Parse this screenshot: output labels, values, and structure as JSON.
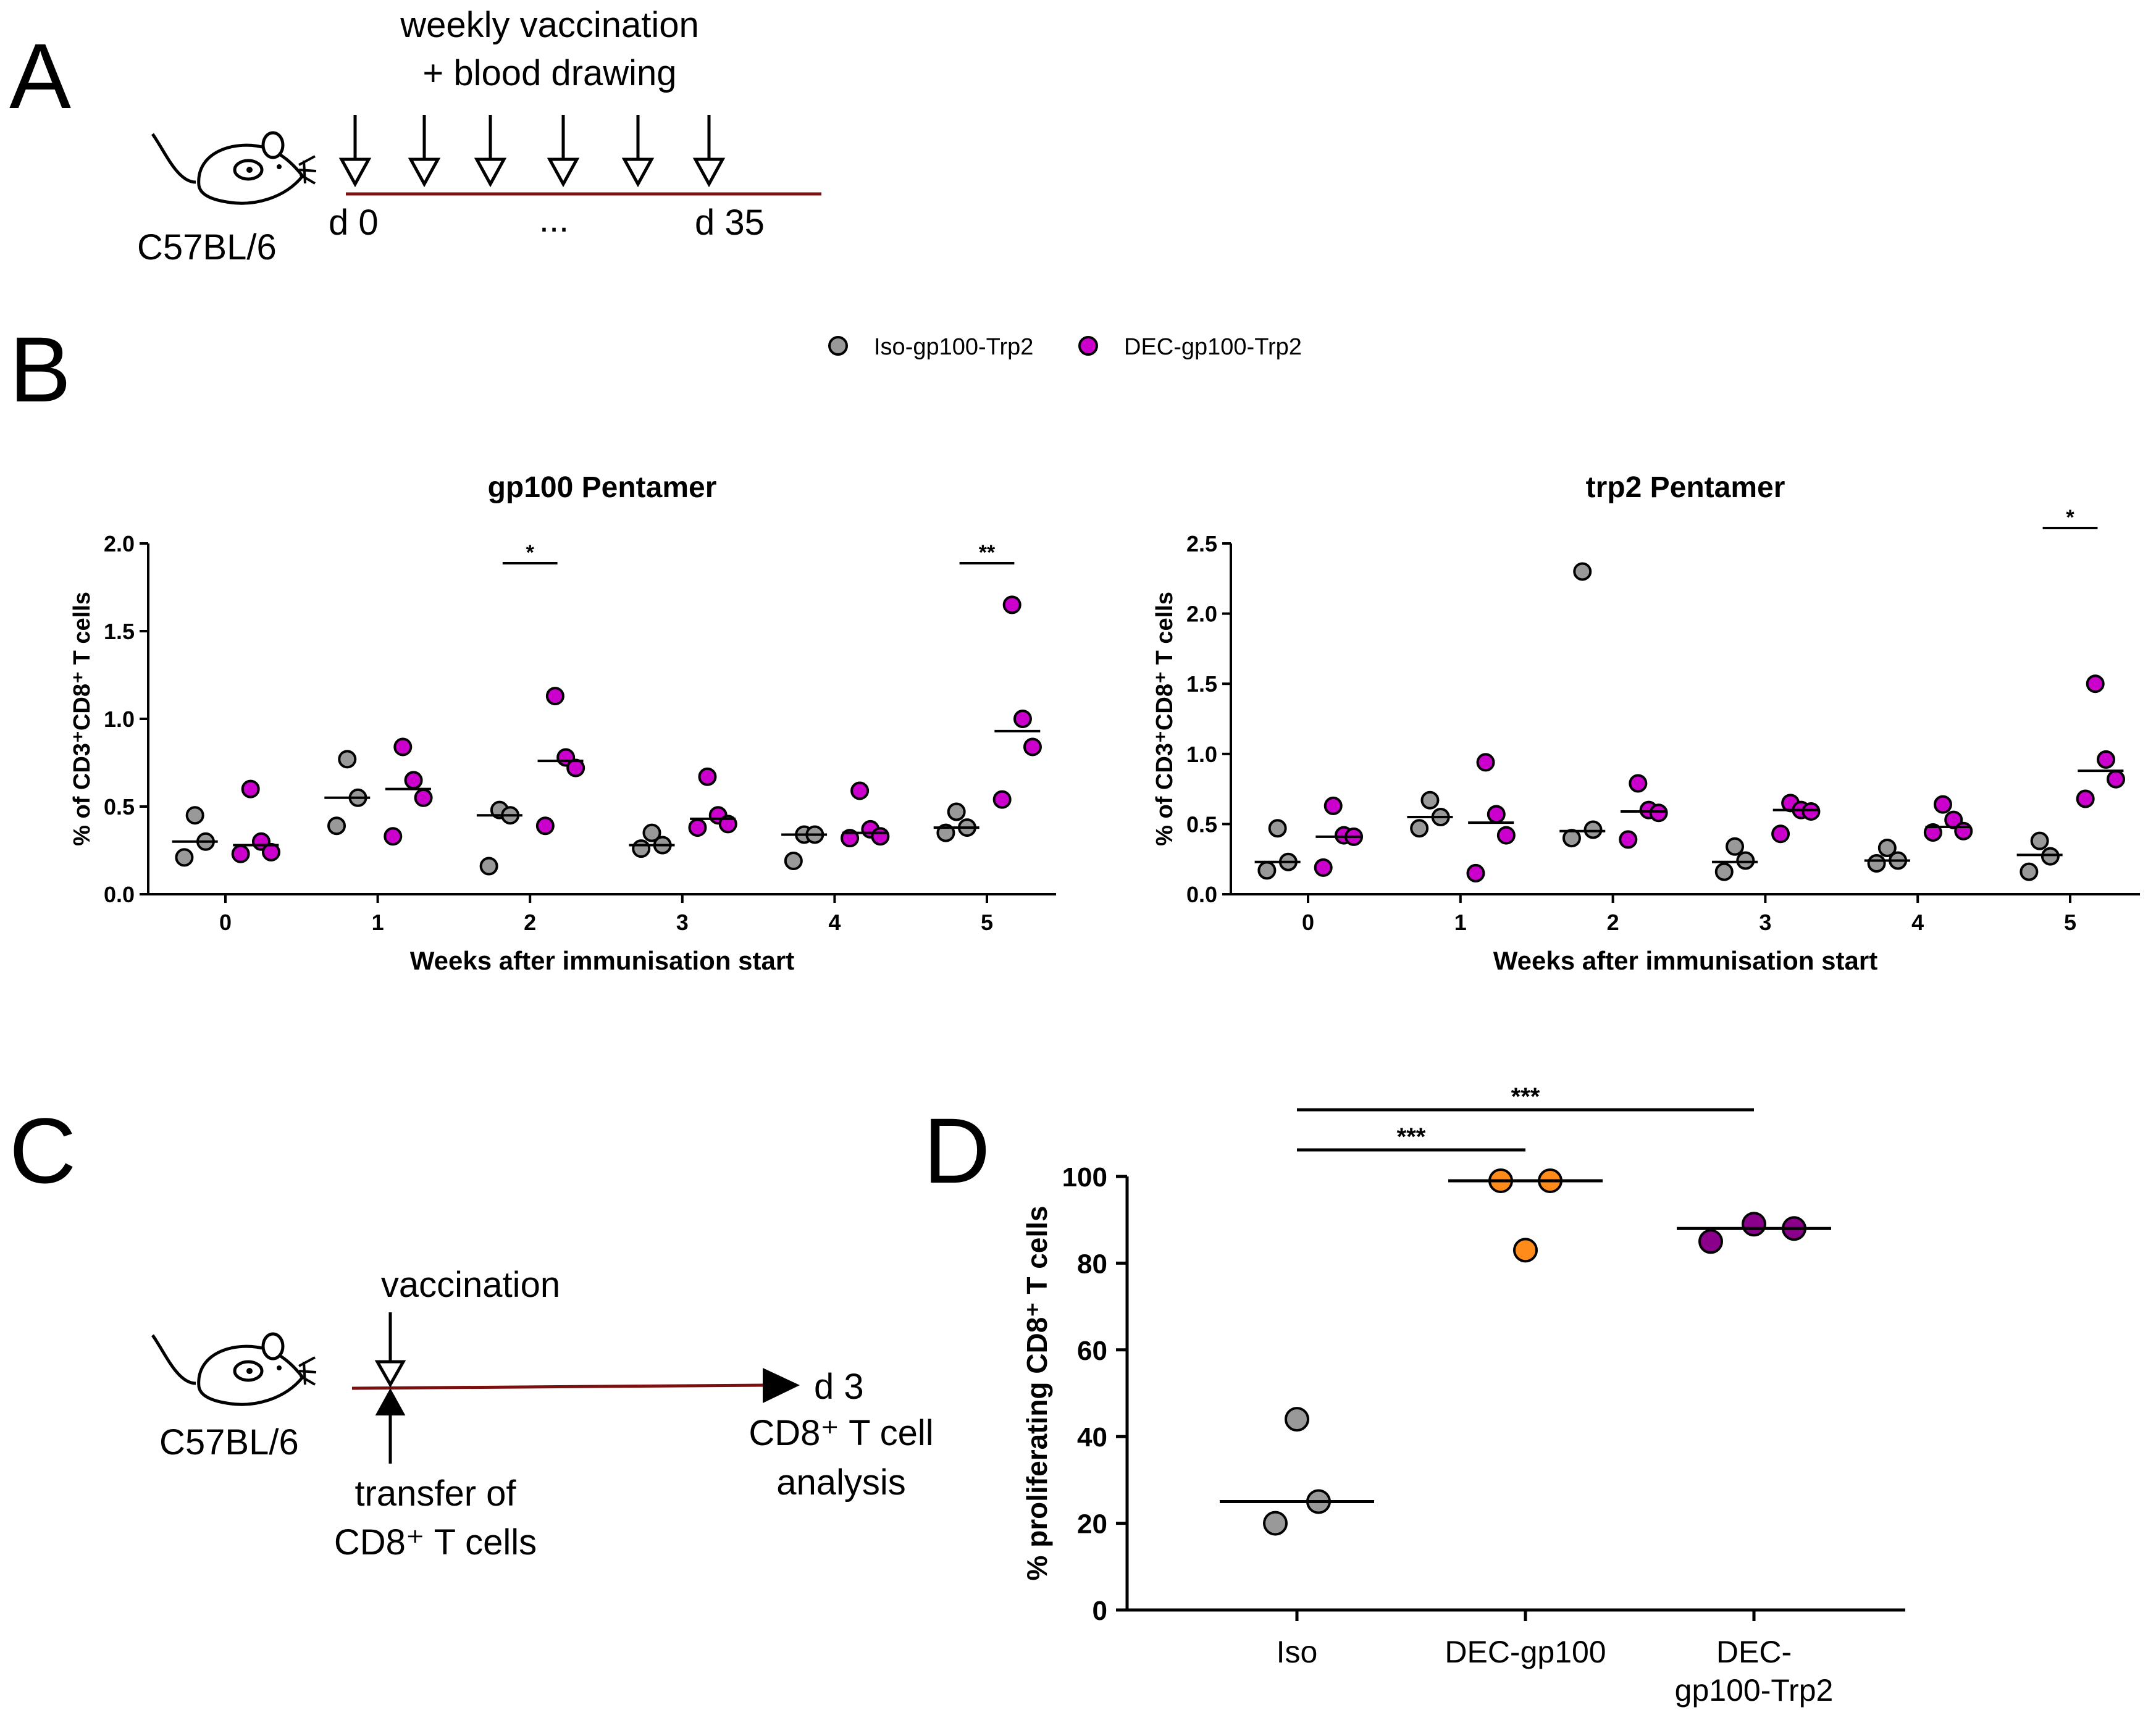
{
  "panels": {
    "a": {
      "label": "A",
      "header_line1": "weekly vaccination",
      "header_line2": "+ blood drawing",
      "strain": "C57BL/6",
      "day_start": "d 0",
      "ellipsis": "...",
      "day_end": "d 35"
    },
    "b": {
      "label": "B"
    },
    "c": {
      "label": "C",
      "vaccination": "vaccination",
      "day": "d 3",
      "analysis_line1": "CD8⁺ T cell",
      "analysis_line2": "analysis",
      "transfer_line1": "transfer of",
      "transfer_line2": "CD8⁺ T cells",
      "strain": "C57BL/6"
    },
    "d": {
      "label": "D"
    }
  },
  "legend": {
    "items": [
      {
        "label": "Iso-gp100-Trp2",
        "color": "#999999"
      },
      {
        "label": "DEC-gp100-Trp2",
        "color": "#CC00CC"
      }
    ]
  },
  "chart_data": [
    {
      "id": "gp100",
      "type": "scatter",
      "title": "gp100 Pentamer",
      "xlabel": "Weeks after immunisation start",
      "ylabel": "% of CD3⁺CD8⁺ T cells",
      "ylim": [
        0,
        2.0
      ],
      "yticks": [
        0.0,
        0.5,
        1.0,
        1.5,
        2.0
      ],
      "ytick_labels": [
        "0.0",
        "0.5",
        "1.0",
        "1.5",
        "2.0"
      ],
      "categories": [
        "0",
        "1",
        "2",
        "3",
        "4",
        "5"
      ],
      "series": [
        {
          "name": "Iso-gp100-Trp2",
          "color": "#999999",
          "values": [
            [
              0.21,
              0.45,
              0.3
            ],
            [
              0.39,
              0.77,
              0.55
            ],
            [
              0.16,
              0.48,
              0.45
            ],
            [
              0.26,
              0.35,
              0.28
            ],
            [
              0.19,
              0.34,
              0.34
            ],
            [
              0.35,
              0.47,
              0.38
            ]
          ],
          "medians": [
            0.3,
            0.55,
            0.45,
            0.28,
            0.34,
            0.38
          ]
        },
        {
          "name": "DEC-gp100-Trp2",
          "color": "#CC00CC",
          "values": [
            [
              0.23,
              0.6,
              0.3,
              0.24
            ],
            [
              0.33,
              0.84,
              0.65,
              0.55
            ],
            [
              0.39,
              1.13,
              0.78,
              0.72
            ],
            [
              0.38,
              0.67,
              0.45,
              0.4
            ],
            [
              0.32,
              0.59,
              0.37,
              0.33
            ],
            [
              0.54,
              1.65,
              1.0,
              0.84
            ]
          ],
          "medians": [
            0.28,
            0.6,
            0.76,
            0.43,
            0.35,
            0.93
          ]
        }
      ],
      "significance": [
        {
          "category": "2",
          "label": "*"
        },
        {
          "category": "5",
          "label": "**"
        }
      ]
    },
    {
      "id": "trp2",
      "type": "scatter",
      "title": "trp2 Pentamer",
      "xlabel": "Weeks after immunisation start",
      "ylabel": "% of CD3⁺CD8⁺ T cells",
      "ylim": [
        0,
        2.5
      ],
      "yticks": [
        0.0,
        0.5,
        1.0,
        1.5,
        2.0,
        2.5
      ],
      "ytick_labels": [
        "0.0",
        "0.5",
        "1.0",
        "1.5",
        "2.0",
        "2.5"
      ],
      "categories": [
        "0",
        "1",
        "2",
        "3",
        "4",
        "5"
      ],
      "series": [
        {
          "name": "Iso-gp100-Trp2",
          "color": "#999999",
          "values": [
            [
              0.17,
              0.47,
              0.23
            ],
            [
              0.47,
              0.67,
              0.55
            ],
            [
              0.4,
              2.3,
              0.46
            ],
            [
              0.16,
              0.34,
              0.24
            ],
            [
              0.22,
              0.33,
              0.24
            ],
            [
              0.16,
              0.38,
              0.27
            ]
          ],
          "medians": [
            0.23,
            0.55,
            0.45,
            0.23,
            0.24,
            0.28
          ]
        },
        {
          "name": "DEC-gp100-Trp2",
          "color": "#CC00CC",
          "values": [
            [
              0.19,
              0.63,
              0.42,
              0.41
            ],
            [
              0.15,
              0.94,
              0.57,
              0.42
            ],
            [
              0.39,
              0.79,
              0.6,
              0.58
            ],
            [
              0.43,
              0.65,
              0.6,
              0.59
            ],
            [
              0.44,
              0.64,
              0.53,
              0.45
            ],
            [
              0.68,
              1.5,
              0.96,
              0.82
            ]
          ],
          "medians": [
            0.41,
            0.51,
            0.59,
            0.6,
            0.48,
            0.88
          ]
        }
      ],
      "significance": [
        {
          "category": "5",
          "label": "*"
        }
      ]
    },
    {
      "id": "prolif",
      "type": "scatter",
      "title": "",
      "xlabel": "",
      "ylabel": "% proliferating CD8⁺ T cells",
      "ylim": [
        0,
        100
      ],
      "yticks": [
        0,
        20,
        40,
        60,
        80,
        100
      ],
      "ytick_labels": [
        "0",
        "20",
        "40",
        "60",
        "80",
        "100"
      ],
      "categories": [
        "Iso",
        "DEC-gp100",
        "DEC-gp100-Trp2"
      ],
      "category_lines": [
        [
          "Iso"
        ],
        [
          "DEC-gp100"
        ],
        [
          "DEC-",
          "gp100-Trp2"
        ]
      ],
      "groups": [
        {
          "category": "Iso",
          "color": "#999999",
          "values": [
            20,
            44,
            25
          ],
          "median": 25
        },
        {
          "category": "DEC-gp100",
          "color": "#FF8C1A",
          "values": [
            83,
            99,
            99
          ],
          "median": 99
        },
        {
          "category": "DEC-gp100-Trp2",
          "color": "#8B008B",
          "values": [
            85,
            89,
            88
          ],
          "median": 88
        }
      ],
      "significance": [
        {
          "from": "Iso",
          "to": "DEC-gp100",
          "label": "***"
        },
        {
          "from": "Iso",
          "to": "DEC-gp100-Trp2",
          "label": "***"
        }
      ]
    }
  ]
}
